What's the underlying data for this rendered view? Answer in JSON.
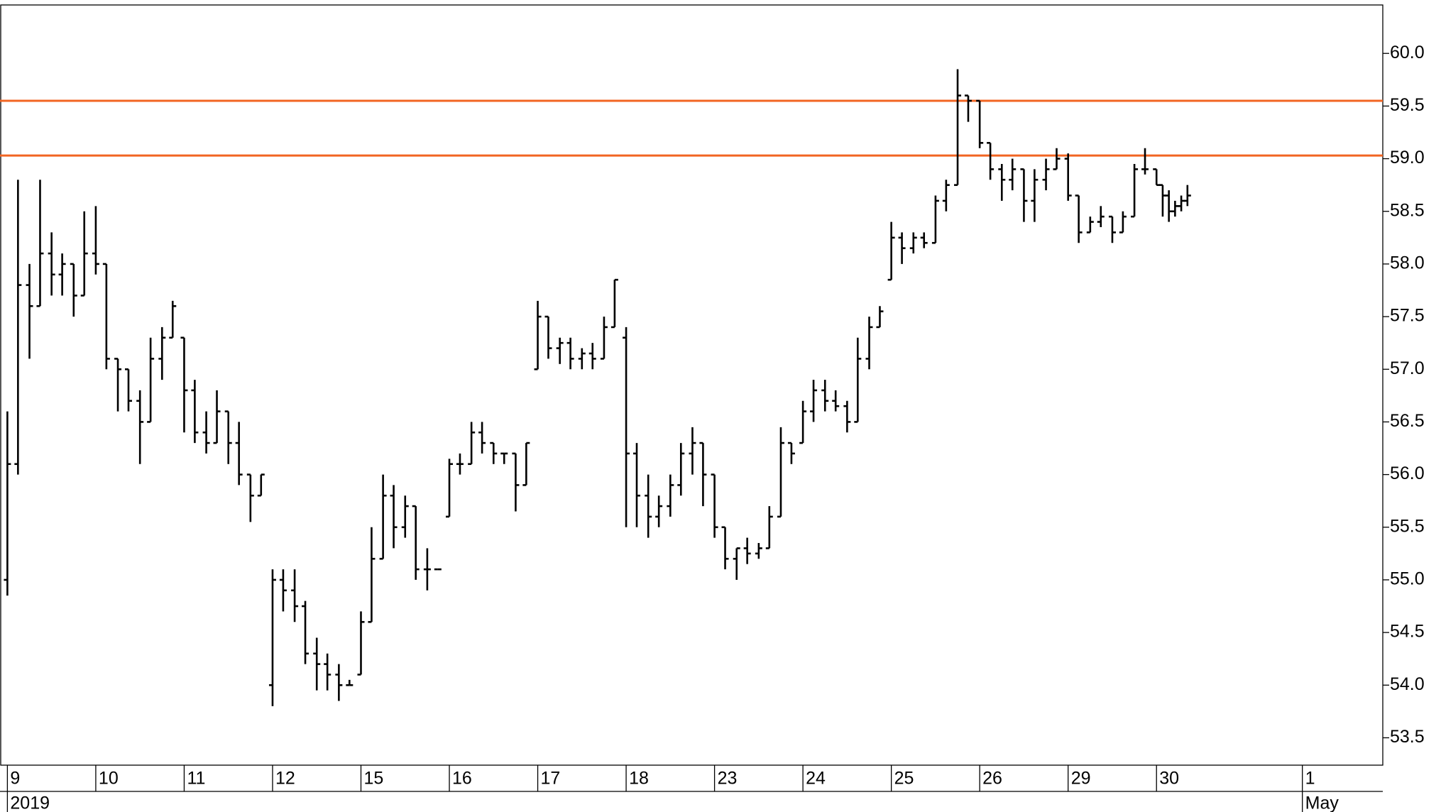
{
  "chart_data": {
    "type": "ohlc",
    "color": "#000000",
    "x": [
      0,
      0.12,
      0.25,
      0.37,
      0.5,
      0.62,
      0.75,
      0.87,
      1,
      1.12,
      1.25,
      1.37,
      1.5,
      1.62,
      1.75,
      1.87,
      2,
      2.12,
      2.25,
      2.37,
      2.5,
      2.62,
      2.75,
      2.87,
      3,
      3.12,
      3.25,
      3.37,
      3.5,
      3.62,
      3.75,
      3.87,
      4,
      4.12,
      4.25,
      4.37,
      4.5,
      4.62,
      4.75,
      4.87,
      5,
      5.12,
      5.25,
      5.37,
      5.5,
      5.62,
      5.75,
      5.87,
      6,
      6.12,
      6.25,
      6.37,
      6.5,
      6.62,
      6.75,
      6.87,
      7,
      7.12,
      7.25,
      7.37,
      7.5,
      7.62,
      7.75,
      7.87,
      8,
      8.12,
      8.25,
      8.37,
      8.5,
      8.62,
      8.75,
      8.87,
      9,
      9.12,
      9.25,
      9.37,
      9.5,
      9.62,
      9.75,
      9.87,
      10,
      10.12,
      10.25,
      10.37,
      10.5,
      10.62,
      10.75,
      10.87,
      11,
      11.12,
      11.25,
      11.37,
      11.5,
      11.62,
      11.75,
      11.87,
      12,
      12.12,
      12.25,
      12.37,
      12.5,
      12.62,
      12.75,
      12.87,
      13,
      13.07,
      13.14,
      13.21,
      13.28,
      13.35
    ],
    "open": [
      55.0,
      56.1,
      57.8,
      57.6,
      58.1,
      57.9,
      58.0,
      57.7,
      58.1,
      58.0,
      57.1,
      57.0,
      56.7,
      56.5,
      57.1,
      57.3,
      57.3,
      56.8,
      56.4,
      56.3,
      56.6,
      56.3,
      56.0,
      55.8,
      54.0,
      55.0,
      54.9,
      54.75,
      54.3,
      54.2,
      54.1,
      54.0,
      54.1,
      54.6,
      55.2,
      55.8,
      55.5,
      55.7,
      55.1,
      55.1,
      55.6,
      56.1,
      56.1,
      56.4,
      56.3,
      56.2,
      56.2,
      55.9,
      57.0,
      57.5,
      57.2,
      57.25,
      57.1,
      57.15,
      57.1,
      57.4,
      57.3,
      56.2,
      55.8,
      55.6,
      55.7,
      55.9,
      56.2,
      56.3,
      56.0,
      55.5,
      55.2,
      55.3,
      55.25,
      55.3,
      55.6,
      56.3,
      56.3,
      56.6,
      56.8,
      56.7,
      56.65,
      56.5,
      57.1,
      57.4,
      57.85,
      58.25,
      58.15,
      58.25,
      58.2,
      58.6,
      58.75,
      59.6,
      59.55,
      59.15,
      58.9,
      58.8,
      58.9,
      58.6,
      58.8,
      58.9,
      59.0,
      58.65,
      58.3,
      58.4,
      58.45,
      58.3,
      58.45,
      58.9,
      58.9,
      58.75,
      58.65,
      58.5,
      58.55,
      58.6
    ],
    "high": [
      56.6,
      58.8,
      58.0,
      58.8,
      58.3,
      58.1,
      58.0,
      58.5,
      58.55,
      58.0,
      57.1,
      57.0,
      56.8,
      57.3,
      57.4,
      57.65,
      57.3,
      56.9,
      56.6,
      56.8,
      56.6,
      56.5,
      56.0,
      56.0,
      55.1,
      55.1,
      55.1,
      54.8,
      54.45,
      54.3,
      54.2,
      54.05,
      54.7,
      55.5,
      56.0,
      55.9,
      55.8,
      55.7,
      55.3,
      55.1,
      56.15,
      56.2,
      56.5,
      56.5,
      56.3,
      56.2,
      56.2,
      56.3,
      57.65,
      57.5,
      57.3,
      57.3,
      57.2,
      57.25,
      57.5,
      57.85,
      57.4,
      56.3,
      56.0,
      55.8,
      56.0,
      56.3,
      56.45,
      56.3,
      56.0,
      55.5,
      55.3,
      55.4,
      55.35,
      55.7,
      56.45,
      56.3,
      56.7,
      56.9,
      56.9,
      56.8,
      56.7,
      57.3,
      57.5,
      57.6,
      58.4,
      58.3,
      58.3,
      58.3,
      58.65,
      58.8,
      59.85,
      59.6,
      59.55,
      59.15,
      58.95,
      59.0,
      58.9,
      58.9,
      59.0,
      59.1,
      59.05,
      58.65,
      58.45,
      58.55,
      58.45,
      58.5,
      58.95,
      59.1,
      58.9,
      58.75,
      58.7,
      58.6,
      58.65,
      58.75
    ],
    "low": [
      54.85,
      56.0,
      57.1,
      57.6,
      57.7,
      57.7,
      57.5,
      57.7,
      57.9,
      57.0,
      56.6,
      56.6,
      56.1,
      56.5,
      56.9,
      57.3,
      56.4,
      56.3,
      56.2,
      56.3,
      56.1,
      55.9,
      55.55,
      55.8,
      53.8,
      54.7,
      54.6,
      54.2,
      53.95,
      53.95,
      53.85,
      54.0,
      54.1,
      54.6,
      55.2,
      55.3,
      55.4,
      55.0,
      54.9,
      55.1,
      55.6,
      56.0,
      56.1,
      56.2,
      56.1,
      56.1,
      55.65,
      55.9,
      57.0,
      57.1,
      57.05,
      57.0,
      57.0,
      57.0,
      57.1,
      57.4,
      55.5,
      55.5,
      55.4,
      55.5,
      55.6,
      55.8,
      56.0,
      55.7,
      55.4,
      55.1,
      55.0,
      55.15,
      55.2,
      55.3,
      55.6,
      56.1,
      56.3,
      56.5,
      56.6,
      56.6,
      56.4,
      56.5,
      57.0,
      57.4,
      57.85,
      58.0,
      58.1,
      58.15,
      58.2,
      58.5,
      58.75,
      59.35,
      59.1,
      58.8,
      58.6,
      58.7,
      58.4,
      58.4,
      58.7,
      58.9,
      58.6,
      58.2,
      58.3,
      58.35,
      58.2,
      58.3,
      58.45,
      58.85,
      58.75,
      58.45,
      58.4,
      58.45,
      58.5,
      58.55
    ],
    "close": [
      56.1,
      57.8,
      57.6,
      58.1,
      57.9,
      58.0,
      57.7,
      58.1,
      58.0,
      57.1,
      57.0,
      56.7,
      56.5,
      57.1,
      57.3,
      57.6,
      56.8,
      56.4,
      56.3,
      56.6,
      56.3,
      56.0,
      55.8,
      56.0,
      55.0,
      54.9,
      54.75,
      54.3,
      54.2,
      54.1,
      54.0,
      54.0,
      54.6,
      55.2,
      55.8,
      55.5,
      55.7,
      55.1,
      55.1,
      55.1,
      56.1,
      56.1,
      56.4,
      56.3,
      56.2,
      56.2,
      55.9,
      56.3,
      57.5,
      57.2,
      57.25,
      57.1,
      57.15,
      57.1,
      57.4,
      57.85,
      56.2,
      55.8,
      55.6,
      55.7,
      55.9,
      56.2,
      56.3,
      56.0,
      55.5,
      55.2,
      55.3,
      55.25,
      55.3,
      55.6,
      56.3,
      56.2,
      56.6,
      56.8,
      56.7,
      56.65,
      56.5,
      57.1,
      57.4,
      57.55,
      58.25,
      58.15,
      58.25,
      58.2,
      58.6,
      58.75,
      59.6,
      59.55,
      59.15,
      58.9,
      58.8,
      58.9,
      58.6,
      58.8,
      58.9,
      59.0,
      58.65,
      58.3,
      58.4,
      58.45,
      58.3,
      58.45,
      58.9,
      58.9,
      58.75,
      58.65,
      58.5,
      58.55,
      58.6,
      58.65
    ],
    "levels": [
      {
        "value": 59.55,
        "color": "#f26522"
      },
      {
        "value": 59.03,
        "color": "#f26522"
      }
    ],
    "xlim": [
      0,
      15.56
    ],
    "xticks": [
      {
        "value": 0,
        "label": "9"
      },
      {
        "value": 1,
        "label": "10"
      },
      {
        "value": 2,
        "label": "11"
      },
      {
        "value": 3,
        "label": "12"
      },
      {
        "value": 4,
        "label": "15"
      },
      {
        "value": 5,
        "label": "16"
      },
      {
        "value": 6,
        "label": "17"
      },
      {
        "value": 7,
        "label": "18"
      },
      {
        "value": 8,
        "label": "23"
      },
      {
        "value": 9,
        "label": "24"
      },
      {
        "value": 10,
        "label": "25"
      },
      {
        "value": 11,
        "label": "26"
      },
      {
        "value": 12,
        "label": "29"
      },
      {
        "value": 13,
        "label": "30"
      },
      {
        "value": 14.65,
        "label": "1"
      }
    ],
    "period_labels": [
      {
        "value": 0,
        "label": "2019"
      },
      {
        "value": 14.65,
        "label": "May"
      }
    ],
    "ylim": [
      53.24,
      60.46
    ],
    "yticks": [
      53.5,
      {
        "value": 54,
        "label": "54.0"
      },
      54.5,
      {
        "value": 55,
        "label": "55.0"
      },
      55.5,
      {
        "value": 56,
        "label": "56.0"
      },
      56.5,
      {
        "value": 57,
        "label": "57.0"
      },
      57.5,
      {
        "value": 58,
        "label": "58.0"
      },
      58.5,
      {
        "value": 59,
        "label": "59.0"
      },
      59.5,
      {
        "value": 60,
        "label": "60.0"
      }
    ]
  }
}
